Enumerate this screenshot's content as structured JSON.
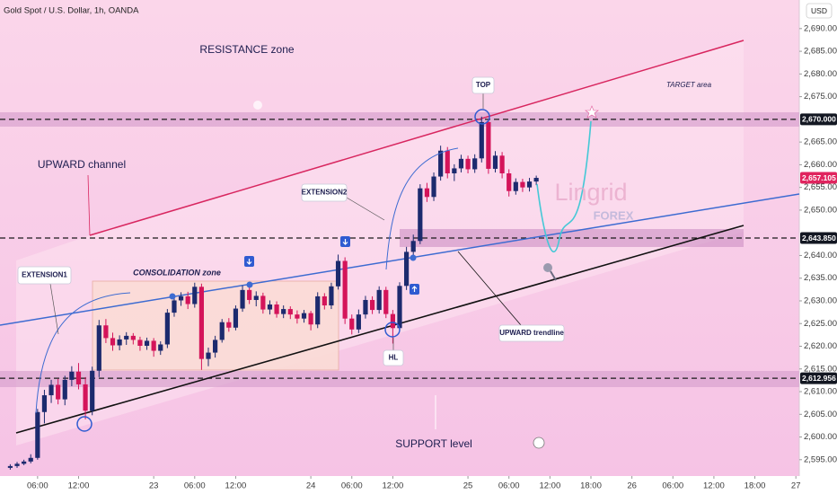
{
  "header": {
    "symbol": "Gold Spot / U.S. Dollar, 1h, OANDA",
    "currency": "USD"
  },
  "annotations": {
    "resistance": "RESISTANCE zone",
    "channel": "UPWARD channel",
    "extension1": "EXTENSION1",
    "consolidation": "CONSOLIDATION zone",
    "extension2": "EXTENSION2",
    "top": "TOP",
    "hl": "HL",
    "trendline": "UPWARD trendline",
    "support": "SUPPORT level",
    "target": "TARGET area",
    "watermark": "Lingrid",
    "watermark_sub": "FOREX"
  },
  "chart_data": {
    "type": "candlestick",
    "up_color": "#1c2a6e",
    "down_color": "#d4145a",
    "xlim": [
      -1.5,
      115.5
    ],
    "ylim": [
      2591.4,
      2696.3
    ],
    "xticks": [
      {
        "value": 4,
        "label": "06:00"
      },
      {
        "value": 10,
        "label": "12:00"
      },
      {
        "value": 21,
        "label": "23"
      },
      {
        "value": 27,
        "label": "06:00"
      },
      {
        "value": 33,
        "label": "12:00"
      },
      {
        "value": 44,
        "label": "24"
      },
      {
        "value": 50,
        "label": "06:00"
      },
      {
        "value": 56,
        "label": "12:00"
      },
      {
        "value": 67,
        "label": "25"
      },
      {
        "value": 73,
        "label": "06:00"
      },
      {
        "value": 79,
        "label": "12:00"
      },
      {
        "value": 85,
        "label": "18:00"
      },
      {
        "value": 91,
        "label": "26"
      },
      {
        "value": 97,
        "label": "06:00"
      },
      {
        "value": 103,
        "label": "12:00"
      },
      {
        "value": 109,
        "label": "18:00"
      },
      {
        "value": 115,
        "label": "27"
      }
    ],
    "yticks": [
      {
        "value": 2595,
        "label": "2,595.000"
      },
      {
        "value": 2600,
        "label": "2,600.000"
      },
      {
        "value": 2605,
        "label": "2,605.000"
      },
      {
        "value": 2610,
        "label": "2,610.000"
      },
      {
        "value": 2615,
        "label": "2,615.000"
      },
      {
        "value": 2620,
        "label": "2,620.000"
      },
      {
        "value": 2625,
        "label": "2,625.000"
      },
      {
        "value": 2630,
        "label": "2,630.000"
      },
      {
        "value": 2635,
        "label": "2,635.000"
      },
      {
        "value": 2640,
        "label": "2,640.000"
      },
      {
        "value": 2650,
        "label": "2,650.000"
      },
      {
        "value": 2655,
        "label": "2,655.000"
      },
      {
        "value": 2660,
        "label": "2,660.000"
      },
      {
        "value": 2665,
        "label": "2,665.000"
      },
      {
        "value": 2675,
        "label": "2,675.000"
      },
      {
        "value": 2680,
        "label": "2,680.000"
      },
      {
        "value": 2685,
        "label": "2,685.000"
      },
      {
        "value": 2690,
        "label": "2,690.000"
      }
    ],
    "levels": [
      {
        "value": 2670,
        "label": "2,670.000",
        "color": "#131722"
      },
      {
        "value": 2643.85,
        "label": "2,643.850",
        "color": "#131722"
      },
      {
        "value": 2612.956,
        "label": "2,612.956",
        "color": "#131722"
      }
    ],
    "last_price": {
      "value": 2657.105,
      "label": "2,657.105",
      "color": "#e0245e"
    },
    "ohlc": [
      [
        2593.2,
        2594.0,
        2592.8,
        2593.6
      ],
      [
        2593.6,
        2594.5,
        2593.2,
        2594.1
      ],
      [
        2594.1,
        2595.0,
        2593.8,
        2594.6
      ],
      [
        2594.6,
        2596.2,
        2594.2,
        2595.4
      ],
      [
        2595.4,
        2606.2,
        2595.0,
        2605.5
      ],
      [
        2605.5,
        2610.4,
        2603.0,
        2609.2
      ],
      [
        2609.2,
        2612.6,
        2607.5,
        2611.5
      ],
      [
        2611.5,
        2612.8,
        2607.2,
        2608.3
      ],
      [
        2608.3,
        2613.5,
        2607.0,
        2612.6
      ],
      [
        2612.6,
        2615.6,
        2611.2,
        2614.4
      ],
      [
        2614.4,
        2616.3,
        2610.5,
        2611.6
      ],
      [
        2611.6,
        2613.2,
        2603.9,
        2605.8
      ],
      [
        2605.8,
        2615.5,
        2604.8,
        2614.6
      ],
      [
        2614.6,
        2625.8,
        2613.2,
        2624.6
      ],
      [
        2624.6,
        2626.0,
        2620.7,
        2621.8
      ],
      [
        2621.8,
        2623.0,
        2619.0,
        2620.2
      ],
      [
        2620.2,
        2622.4,
        2619.1,
        2621.5
      ],
      [
        2621.5,
        2623.1,
        2620.3,
        2622.3
      ],
      [
        2622.3,
        2622.9,
        2620.4,
        2621.4
      ],
      [
        2621.4,
        2622.1,
        2619.0,
        2620.1
      ],
      [
        2620.1,
        2621.9,
        2619.2,
        2621.2
      ],
      [
        2621.2,
        2621.8,
        2617.7,
        2619.0
      ],
      [
        2619.0,
        2621.1,
        2618.1,
        2620.4
      ],
      [
        2620.4,
        2628.2,
        2619.6,
        2627.4
      ],
      [
        2627.4,
        2631.1,
        2626.5,
        2630.1
      ],
      [
        2630.1,
        2631.9,
        2628.9,
        2631.0
      ],
      [
        2631.0,
        2632.0,
        2628.2,
        2629.3
      ],
      [
        2629.3,
        2634.0,
        2628.5,
        2633.1
      ],
      [
        2633.1,
        2633.8,
        2614.8,
        2617.2
      ],
      [
        2617.2,
        2619.7,
        2615.6,
        2618.6
      ],
      [
        2618.6,
        2622.3,
        2617.5,
        2621.4
      ],
      [
        2621.4,
        2626.0,
        2620.8,
        2625.3
      ],
      [
        2625.3,
        2626.2,
        2623.2,
        2624.1
      ],
      [
        2624.1,
        2629.0,
        2623.5,
        2628.3
      ],
      [
        2628.3,
        2633.4,
        2627.6,
        2632.4
      ],
      [
        2632.4,
        2633.0,
        2629.3,
        2630.2
      ],
      [
        2630.2,
        2632.1,
        2628.8,
        2631.1
      ],
      [
        2631.1,
        2631.8,
        2627.2,
        2628.1
      ],
      [
        2628.1,
        2630.1,
        2627.0,
        2629.2
      ],
      [
        2629.2,
        2629.9,
        2626.3,
        2627.1
      ],
      [
        2627.1,
        2629.0,
        2626.2,
        2628.2
      ],
      [
        2628.2,
        2628.8,
        2626.0,
        2627.0
      ],
      [
        2627.0,
        2627.9,
        2625.0,
        2626.1
      ],
      [
        2626.1,
        2628.0,
        2625.2,
        2627.3
      ],
      [
        2627.3,
        2627.8,
        2623.5,
        2624.8
      ],
      [
        2624.8,
        2631.9,
        2624.0,
        2631.0
      ],
      [
        2631.0,
        2631.7,
        2628.1,
        2629.0
      ],
      [
        2629.0,
        2634.0,
        2628.2,
        2633.2
      ],
      [
        2633.2,
        2640.2,
        2632.5,
        2638.8
      ],
      [
        2638.8,
        2639.6,
        2624.9,
        2626.1
      ],
      [
        2626.1,
        2627.0,
        2622.6,
        2623.7
      ],
      [
        2623.7,
        2628.1,
        2622.9,
        2627.0
      ],
      [
        2627.0,
        2631.1,
        2626.1,
        2630.2
      ],
      [
        2630.2,
        2631.0,
        2627.1,
        2628.0
      ],
      [
        2628.0,
        2633.2,
        2627.2,
        2632.4
      ],
      [
        2632.4,
        2633.1,
        2626.2,
        2627.1
      ],
      [
        2627.1,
        2628.0,
        2620.6,
        2624.0
      ],
      [
        2624.0,
        2634.1,
        2623.2,
        2633.3
      ],
      [
        2633.3,
        2641.9,
        2632.4,
        2640.8
      ],
      [
        2640.8,
        2644.6,
        2639.3,
        2643.2
      ],
      [
        2643.2,
        2655.7,
        2642.5,
        2654.8
      ],
      [
        2654.8,
        2656.0,
        2651.8,
        2652.9
      ],
      [
        2652.9,
        2658.3,
        2652.0,
        2657.4
      ],
      [
        2657.4,
        2664.2,
        2656.5,
        2663.1
      ],
      [
        2663.1,
        2663.9,
        2657.0,
        2658.1
      ],
      [
        2658.1,
        2660.1,
        2656.4,
        2659.2
      ],
      [
        2659.2,
        2662.2,
        2658.3,
        2661.3
      ],
      [
        2661.3,
        2662.0,
        2658.1,
        2659.0
      ],
      [
        2659.0,
        2662.3,
        2658.2,
        2661.4
      ],
      [
        2661.4,
        2670.6,
        2660.5,
        2669.4
      ],
      [
        2669.4,
        2670.1,
        2658.0,
        2659.1
      ],
      [
        2659.1,
        2663.0,
        2658.3,
        2662.0
      ],
      [
        2662.0,
        2662.8,
        2657.0,
        2658.1
      ],
      [
        2658.1,
        2659.0,
        2653.0,
        2654.2
      ],
      [
        2654.2,
        2657.0,
        2653.4,
        2656.2
      ],
      [
        2656.2,
        2656.9,
        2654.0,
        2655.0
      ],
      [
        2655.0,
        2657.1,
        2654.1,
        2656.3
      ],
      [
        2656.3,
        2657.6,
        2655.5,
        2657.105
      ]
    ]
  }
}
